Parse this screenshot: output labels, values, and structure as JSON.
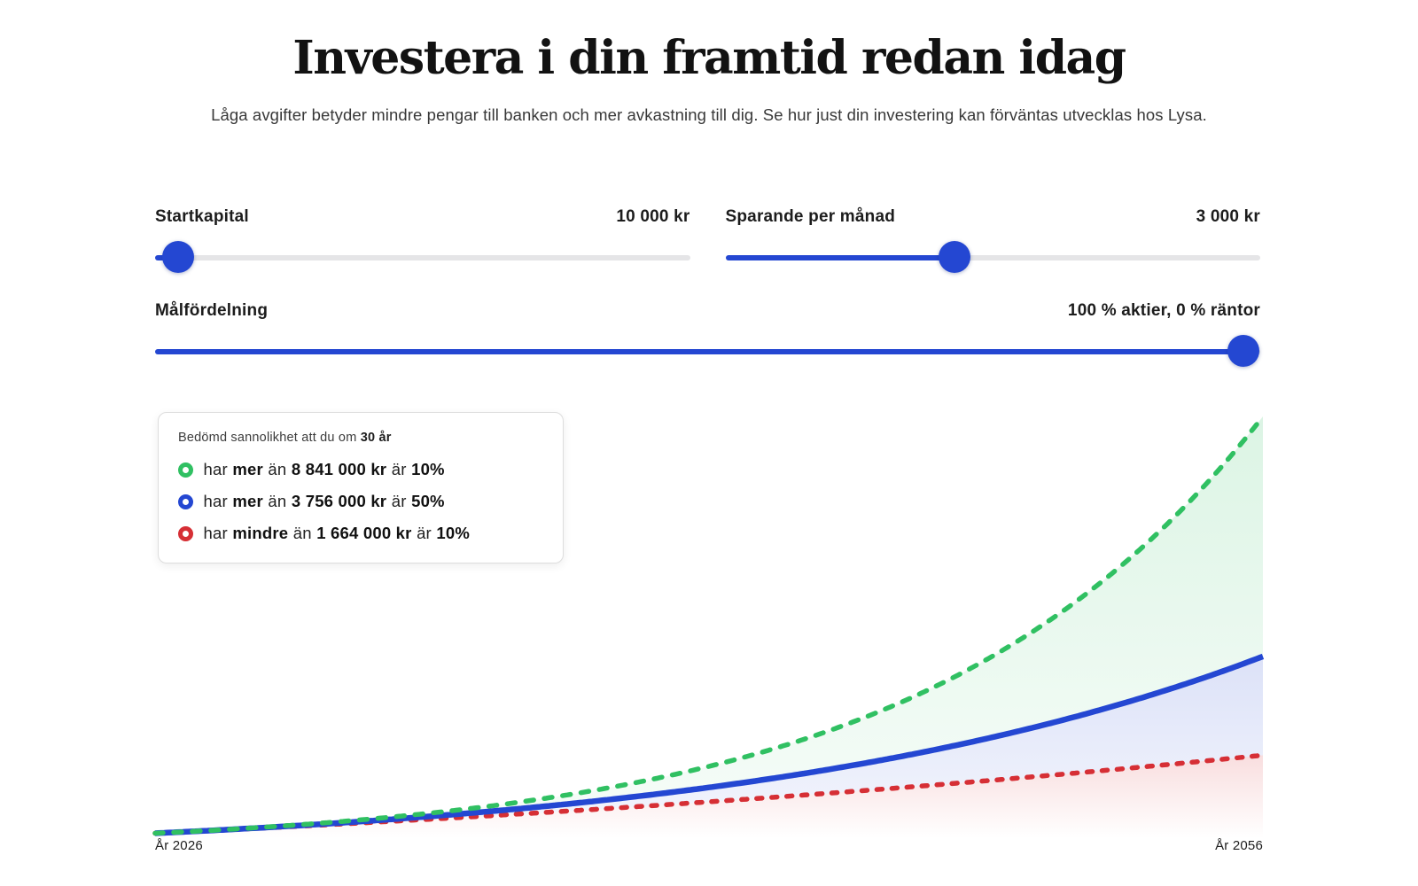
{
  "page": {
    "title": "Investera i din framtid redan idag",
    "subtitle": "Låga avgifter betyder mindre pengar till banken och mer avkastning till dig. Se hur just din investering kan förväntas utvecklas hos Lysa."
  },
  "colors": {
    "accent_blue": "#2447d2",
    "track_gray": "#e5e5e7",
    "green": "#30c062",
    "red": "#d62f35"
  },
  "controls": {
    "startkapital": {
      "label": "Startkapital",
      "value": "10 000 kr",
      "fraction": 0.043
    },
    "sparande": {
      "label": "Sparande per månad",
      "value": "3 000 kr",
      "fraction": 0.429
    },
    "malfordelning": {
      "label": "Målfördelning",
      "value": "100 % aktier, 0 % räntor",
      "fraction": 0.985
    }
  },
  "chart_data": {
    "type": "area",
    "title": "Utveckling av investering över 30 år (percentilbanor)",
    "x_start_label": "År 2026",
    "x_end_label": "År 2056",
    "start_year": 2026,
    "end_year": 2056,
    "years": 30,
    "initial_kr": 10000,
    "monthly_kr": 3000,
    "ylim_kr": [
      0,
      8841000
    ],
    "grid": false,
    "legend_position": "top-left",
    "legend_title_prefix": "Bedömd sannolikhet att du om",
    "legend_title_bold": "30 år",
    "series": [
      {
        "name": "percentile-90",
        "final_value_kr": 8841000,
        "color": "#30c062",
        "style": "dashed",
        "legend": {
          "w1": "har",
          "w2": "mer",
          "w3": "än",
          "amount": "8 841 000 kr",
          "w4": "är",
          "prob": "10%"
        }
      },
      {
        "name": "median",
        "final_value_kr": 3756000,
        "color": "#2447d2",
        "style": "solid",
        "legend": {
          "w1": "har",
          "w2": "mer",
          "w3": "än",
          "amount": "3 756 000 kr",
          "w4": "är",
          "prob": "50%"
        }
      },
      {
        "name": "percentile-10",
        "final_value_kr": 1664000,
        "color": "#d62f35",
        "style": "dashed",
        "legend": {
          "w1": "har",
          "w2": "mindre",
          "w3": "än",
          "amount": "1 664 000 kr",
          "w4": "är",
          "prob": "10%"
        }
      }
    ]
  }
}
